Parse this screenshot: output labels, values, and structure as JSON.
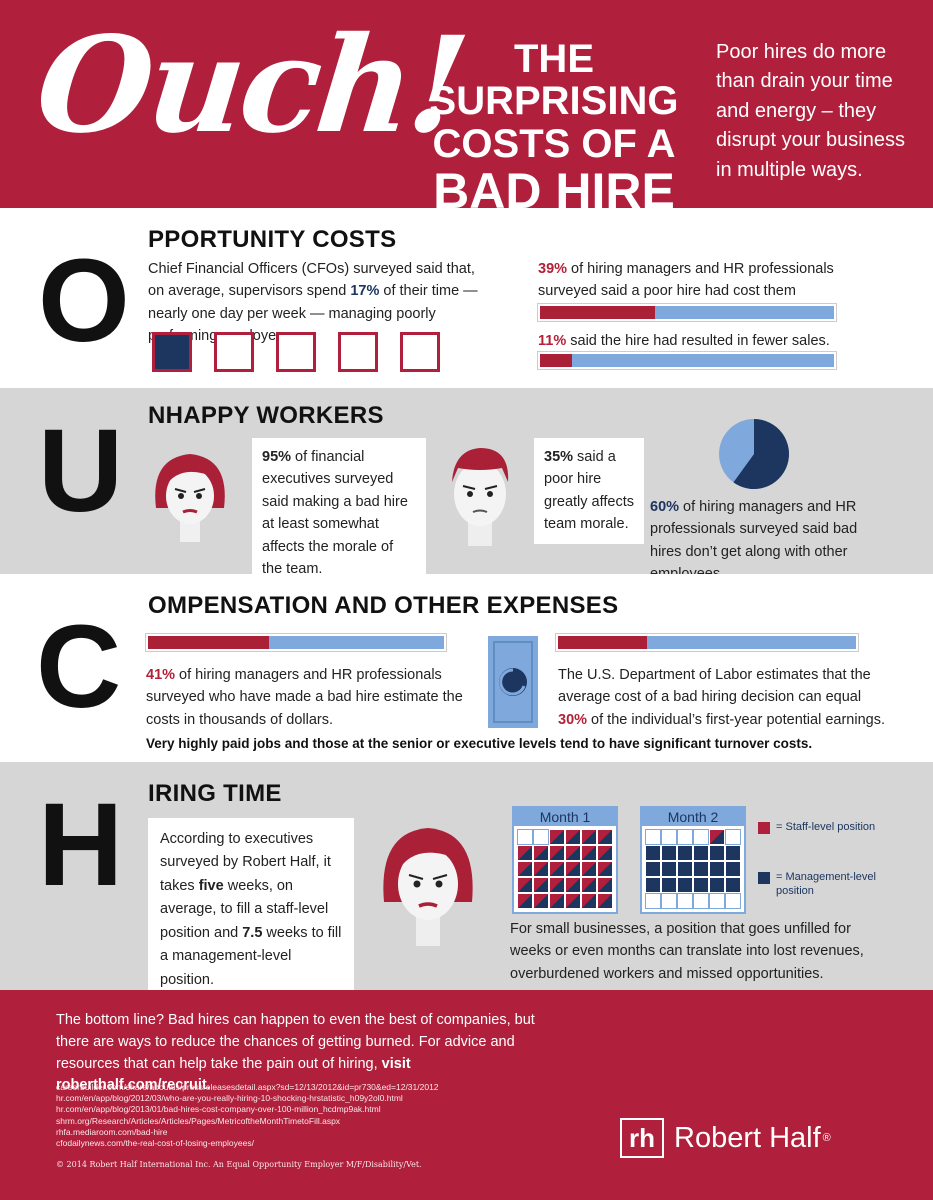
{
  "header": {
    "ouch": "Ouch!",
    "title_l1": "THE SURPRISING",
    "title_l2": "COSTS OF A",
    "title_l3": "BAD HIRE",
    "intro": "Poor hires do more than drain your time and energy – they disrupt your business in multiple ways."
  },
  "o": {
    "letter": "O",
    "heading": "PPORTUNITY COSTS",
    "cfo_pre": "Chief Financial Officers (CFOs) surveyed said that, on average, supervisors spend ",
    "cfo_pct": "17%",
    "cfo_post": " of their time — nearly one day per week — managing poorly performing employees.",
    "stat1_pct": "39%",
    "stat1_text": " of hiring managers and HR professionals surveyed said a poor hire had cost them productivity;",
    "stat2_pct": "11%",
    "stat2_text": " said the hire had resulted in fewer sales.",
    "bar1": 0.39,
    "bar2": 0.11
  },
  "u": {
    "letter": "U",
    "heading": "NHAPPY WORKERS",
    "b1_pct": "95%",
    "b1_text": " of financial executives surveyed said making a bad hire at least somewhat affects the morale of the team.",
    "b2_pct": "35%",
    "b2_text": " said a poor hire greatly affects team morale.",
    "s3_pct": "60%",
    "s3_text": " of hiring managers and HR professionals surveyed said bad hires don’t get along with other employees.",
    "pie_pct": 0.6
  },
  "c": {
    "letter": "C",
    "heading": "OMPENSATION AND OTHER EXPENSES",
    "s1_pct": "41%",
    "s1_text": " of hiring managers and HR professionals surveyed who have made a bad hire estimate the costs in thousands of dollars.",
    "s2_text": "The U.S. Department of Labor estimates that the average cost of a bad hiring decision can equal ",
    "s2_pct": "30%",
    "s2_post": " of the individual’s first-year potential earnings.",
    "note": "Very highly paid jobs and those at the senior or executive levels tend to have significant turnover costs.",
    "bar1": 0.41,
    "bar2": 0.3
  },
  "h": {
    "letter": "H",
    "heading": "IRING TIME",
    "bubble_pre": "According to executives surveyed by Robert Half, it takes ",
    "bubble_five": "five",
    "bubble_mid": " weeks, on average, to fill a staff-level position and ",
    "bubble_seven": "7.5",
    "bubble_post": " weeks to fill a management-level position.",
    "month1": "Month 1",
    "month2": "Month 2",
    "legend_staff": "= Staff-level position",
    "legend_mgmt": "= Management-level position",
    "small_biz": "For small businesses, a position that goes unfilled for weeks or even months can translate into lost revenues, overburdened workers and missed opportunities."
  },
  "footer": {
    "bottom_line": "The bottom line? Bad hires can happen to even the best of companies, but there are ways to reduce the chances of getting burned. For advice and resources that can help take the pain out of hiring, ",
    "visit": "visit roberthalf.com/recruit.",
    "refs": [
      "careerbuilder.com/share/aboutus/pressreleasesdetail.aspx?sd=12/13/2012&id=pr730&ed=12/31/2012",
      "hr.com/en/app/blog/2012/03/who-are-you-really-hiring-10-shocking-hrstatistic_h09y2ol0.html",
      "hr.com/en/app/blog/2013/01/bad-hires-cost-company-over-100-million_hcdmp9ak.html",
      "shrm.org/Research/Articles/Articles/Pages/MetricoftheMonthTimetoFill.aspx",
      "rhfa.mediaroom.com/bad-hire",
      "cfodailynews.com/the-real-cost-of-losing-employees/"
    ],
    "copyright": "© 2014 Robert Half International Inc. An Equal Opportunity Employer M/F/Disability/Vet.",
    "logo_mark": "rh",
    "logo_text": "Robert Half",
    "reg": "®"
  },
  "colors": {
    "red": "#b01f3b",
    "navy": "#1d3660",
    "lightblue": "#7fa9dc",
    "gray": "#d6d6d6"
  }
}
